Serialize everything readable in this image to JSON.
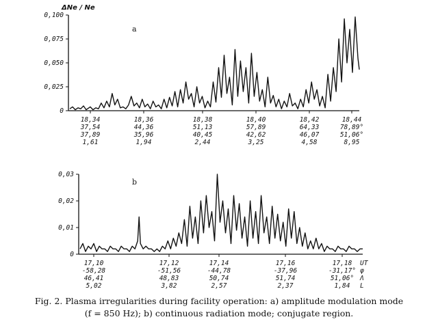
{
  "caption": {
    "line1": "Fig. 2. Plasma irregularities during facility operation: a) amplitude modulation mode",
    "line2": "(f = 850 Hz); b) continuous radiation mode; conjugate region."
  },
  "chart_data": [
    {
      "type": "line",
      "panel_label": "a",
      "ylabel": "ΔNe / Ne",
      "ylim": [
        0,
        0.1
      ],
      "ytick_labels": [
        "0",
        "0,025",
        "0,050",
        "0,075",
        "0,100"
      ],
      "xtick_labels": [
        [
          "18,34",
          "37,54",
          "37,89",
          "1,61"
        ],
        [
          "18,36",
          "44,36",
          "35,96",
          "1,94"
        ],
        [
          "18,38",
          "51,13",
          "40,45",
          "2,44"
        ],
        [
          "18,40",
          "57,89",
          "42,62",
          "3,25"
        ],
        [
          "18,42",
          "64,33",
          "46,07",
          "4,58"
        ],
        [
          "18,44",
          "78,89°",
          "51,06°",
          "8,95"
        ]
      ],
      "x": [
        0,
        4,
        8,
        12,
        16,
        20,
        24,
        26,
        30,
        34,
        38,
        42,
        46,
        50,
        54,
        58,
        62,
        66,
        70,
        74,
        78,
        82,
        86,
        90,
        94,
        98,
        102,
        106,
        110,
        114,
        118,
        122,
        126,
        130,
        134,
        138,
        142,
        146,
        150,
        154,
        158,
        162,
        166,
        170,
        174,
        178,
        182,
        186,
        190,
        194,
        198,
        202,
        206,
        210,
        214,
        218,
        222,
        226,
        230,
        234,
        238,
        242,
        246,
        250,
        254,
        258,
        262,
        266,
        270,
        274,
        278,
        282,
        286,
        290,
        294,
        298,
        302,
        306,
        310,
        314,
        318,
        322,
        326,
        330,
        334,
        338,
        342,
        346,
        350,
        354,
        358,
        362,
        366,
        370,
        374,
        378,
        382,
        386,
        390,
        394,
        398,
        402,
        406,
        410,
        414,
        418,
        422,
        424
      ],
      "y": [
        0.002,
        0.004,
        0.001,
        0.003,
        0.002,
        0.005,
        0.001,
        0.002,
        0.004,
        0.001,
        0.003,
        0.002,
        0.008,
        0.003,
        0.01,
        0.004,
        0.018,
        0.006,
        0.012,
        0.003,
        0.004,
        0.002,
        0.006,
        0.015,
        0.005,
        0.008,
        0.003,
        0.012,
        0.004,
        0.007,
        0.002,
        0.01,
        0.004,
        0.006,
        0.002,
        0.012,
        0.003,
        0.014,
        0.005,
        0.02,
        0.004,
        0.022,
        0.008,
        0.03,
        0.012,
        0.018,
        0.004,
        0.025,
        0.008,
        0.015,
        0.003,
        0.01,
        0.004,
        0.03,
        0.009,
        0.045,
        0.014,
        0.058,
        0.018,
        0.035,
        0.006,
        0.064,
        0.015,
        0.052,
        0.02,
        0.045,
        0.008,
        0.06,
        0.015,
        0.04,
        0.01,
        0.022,
        0.004,
        0.035,
        0.008,
        0.016,
        0.004,
        0.012,
        0.002,
        0.01,
        0.004,
        0.018,
        0.005,
        0.008,
        0.002,
        0.012,
        0.004,
        0.022,
        0.008,
        0.03,
        0.012,
        0.022,
        0.005,
        0.015,
        0.003,
        0.038,
        0.01,
        0.045,
        0.02,
        0.075,
        0.03,
        0.096,
        0.05,
        0.085,
        0.04,
        0.098,
        0.055,
        0.043
      ]
    },
    {
      "type": "line",
      "panel_label": "b",
      "ylim": [
        0,
        0.03
      ],
      "ytick_labels": [
        "0",
        "0,01",
        "0,02",
        "0,03"
      ],
      "xtick_labels": [
        [
          "17,10",
          "-58,28",
          "46,41",
          "5,02"
        ],
        [
          "17,12",
          "-51,56",
          "48,83",
          "3,82"
        ],
        [
          "17,14",
          "-44,78",
          "50,74",
          "2,57"
        ],
        [
          "17,16",
          "-37,96",
          "51,74",
          "2,37"
        ],
        [
          "17,18",
          "-31,17°",
          "51,06°",
          "1,84"
        ]
      ],
      "right_labels": [
        "UT",
        "φ",
        "Λ",
        "L"
      ],
      "x": [
        0,
        4,
        8,
        12,
        16,
        20,
        24,
        28,
        32,
        36,
        40,
        44,
        48,
        52,
        56,
        60,
        64,
        68,
        72,
        76,
        80,
        84,
        86,
        88,
        92,
        96,
        100,
        104,
        108,
        112,
        116,
        120,
        124,
        128,
        132,
        136,
        140,
        144,
        148,
        152,
        156,
        160,
        164,
        168,
        172,
        176,
        180,
        184,
        188,
        192,
        196,
        200,
        204,
        208,
        212,
        216,
        220,
        224,
        228,
        232,
        236,
        240,
        244,
        248,
        252,
        256,
        260,
        264,
        268,
        272,
        276,
        280,
        284,
        288,
        292,
        296,
        300,
        304,
        308,
        312,
        316,
        320,
        324,
        328,
        332,
        336,
        340,
        344,
        348,
        352,
        356,
        360,
        364,
        368,
        372,
        376,
        380,
        384,
        388,
        392,
        396,
        400,
        404,
        408,
        412
      ],
      "y": [
        0.002,
        0.004,
        0.001,
        0.003,
        0.002,
        0.004,
        0.001,
        0.003,
        0.002,
        0.002,
        0.001,
        0.003,
        0.002,
        0.002,
        0.001,
        0.003,
        0.002,
        0.002,
        0.001,
        0.003,
        0.002,
        0.005,
        0.014,
        0.004,
        0.002,
        0.003,
        0.002,
        0.002,
        0.001,
        0.002,
        0.001,
        0.003,
        0.002,
        0.005,
        0.002,
        0.006,
        0.003,
        0.008,
        0.004,
        0.013,
        0.003,
        0.018,
        0.006,
        0.014,
        0.004,
        0.02,
        0.008,
        0.022,
        0.01,
        0.016,
        0.005,
        0.03,
        0.012,
        0.02,
        0.008,
        0.017,
        0.004,
        0.022,
        0.009,
        0.019,
        0.006,
        0.014,
        0.003,
        0.02,
        0.006,
        0.016,
        0.004,
        0.022,
        0.008,
        0.014,
        0.004,
        0.018,
        0.006,
        0.015,
        0.005,
        0.012,
        0.003,
        0.017,
        0.006,
        0.016,
        0.004,
        0.01,
        0.003,
        0.008,
        0.002,
        0.005,
        0.002,
        0.006,
        0.002,
        0.004,
        0.001,
        0.003,
        0.002,
        0.002,
        0.001,
        0.003,
        0.002,
        0.002,
        0.001,
        0.003,
        0.002,
        0.002,
        0.001,
        0.002,
        0.002
      ]
    }
  ]
}
